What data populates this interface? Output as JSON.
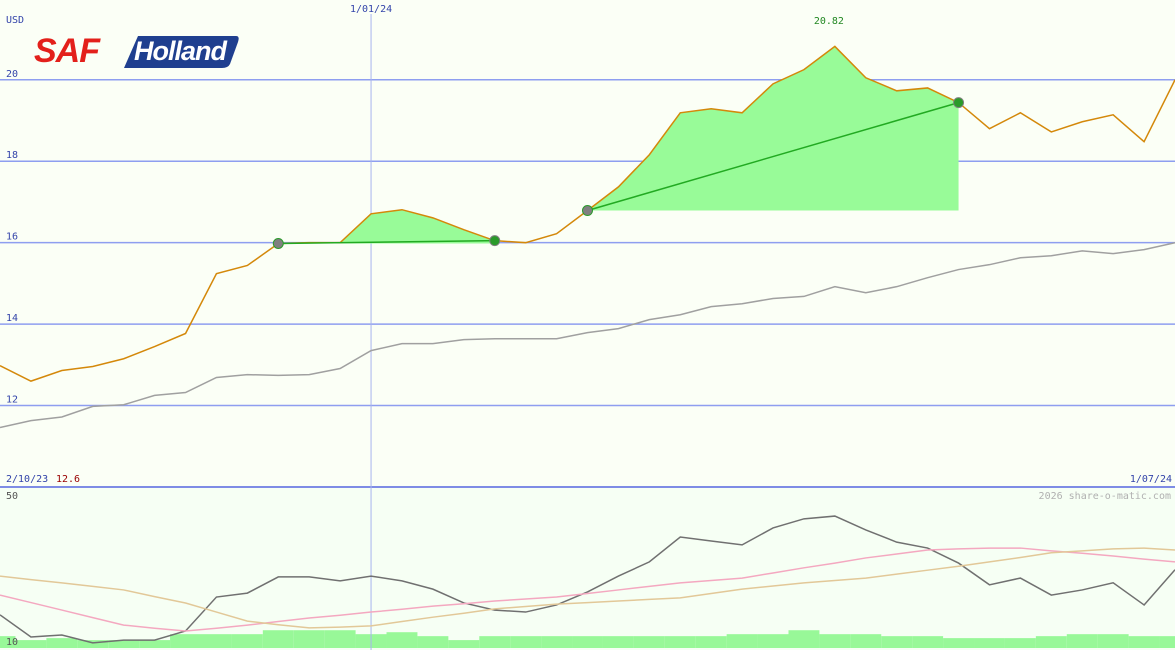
{
  "header": {
    "logo": {
      "saf": "SAF",
      "holland": "Holland"
    },
    "credit": "2026 share-o-matic.com"
  },
  "chart_data": [
    {
      "type": "line",
      "y_label": "USD",
      "categories": [
        "2/10/23",
        null,
        null,
        null,
        null,
        null,
        null,
        null,
        null,
        null,
        null,
        null,
        "1/01/24",
        null,
        null,
        null,
        null,
        null,
        null,
        null,
        null,
        null,
        null,
        null,
        null,
        null,
        null,
        null,
        null,
        null,
        null,
        null,
        null,
        null,
        null,
        null,
        null,
        null,
        "1/07/24"
      ],
      "series": [
        {
          "color": "#d4880a",
          "values": [
            12.98,
            12.6,
            12.86,
            12.96,
            13.15,
            13.45,
            13.77,
            15.24,
            15.44,
            15.98,
            16.0,
            16.0,
            16.71,
            16.81,
            16.61,
            16.32,
            16.05,
            16.0,
            16.22,
            16.79,
            17.37,
            18.16,
            19.19,
            19.29,
            19.19,
            19.9,
            20.25,
            20.82,
            20.05,
            19.73,
            19.8,
            19.44,
            18.8,
            19.19,
            18.72,
            18.97,
            19.14,
            18.48,
            20.0
          ]
        },
        {
          "color": "#a0a0a0",
          "values": [
            11.46,
            11.63,
            11.72,
            11.98,
            12.02,
            12.25,
            12.32,
            12.69,
            12.76,
            12.74,
            12.76,
            12.91,
            13.35,
            13.52,
            13.52,
            13.62,
            13.64,
            13.64,
            13.64,
            13.79,
            13.89,
            14.11,
            14.23,
            14.43,
            14.5,
            14.63,
            14.68,
            14.92,
            14.77,
            14.92,
            15.14,
            15.34,
            15.46,
            15.63,
            15.68,
            15.8,
            15.73,
            15.83,
            16.0
          ]
        }
      ],
      "trend_lines": [
        {
          "from": 9,
          "to": 16,
          "color": "#22aa22",
          "fill": "#98fb98"
        },
        {
          "from": 19,
          "to": 31,
          "color": "#22aa22",
          "fill": "#98fb98"
        }
      ],
      "ylim": [
        10,
        21.96
      ],
      "yticks": [
        12,
        14,
        16,
        18,
        20
      ],
      "grid": true
    },
    {
      "type": "line",
      "series": [
        {
          "color": "#707070",
          "values": [
            18.4,
            12.8,
            13.3,
            11.3,
            12.0,
            12.0,
            14.3,
            22.9,
            23.9,
            28.0,
            28.0,
            27.0,
            28.2,
            27.0,
            24.9,
            21.4,
            19.6,
            19.1,
            20.9,
            24.2,
            28.2,
            31.8,
            38.1,
            37.1,
            36.1,
            40.4,
            42.7,
            43.4,
            39.9,
            36.8,
            35.3,
            31.5,
            26.0,
            27.7,
            23.4,
            24.7,
            26.5,
            20.9,
            29.8
          ]
        },
        {
          "color": "#f4a8c0",
          "values": [
            23.4,
            21.5,
            19.6,
            17.7,
            15.8,
            15.0,
            14.3,
            15.0,
            15.8,
            16.7,
            17.6,
            18.3,
            19.1,
            19.8,
            20.6,
            21.2,
            21.9,
            22.4,
            22.9,
            23.8,
            24.7,
            25.6,
            26.5,
            27.1,
            27.7,
            29.0,
            30.3,
            31.5,
            32.8,
            33.8,
            34.8,
            35.1,
            35.3,
            35.3,
            34.6,
            34.0,
            33.3,
            32.5,
            31.8
          ]
        },
        {
          "color": "#e2c898",
          "values": [
            28.2,
            27.3,
            26.5,
            25.6,
            24.7,
            23.0,
            21.4,
            19.1,
            16.8,
            15.9,
            15.1,
            15.3,
            15.6,
            16.7,
            17.8,
            18.8,
            19.9,
            20.5,
            21.1,
            21.5,
            21.9,
            22.3,
            22.7,
            23.8,
            24.9,
            25.7,
            26.5,
            27.1,
            27.7,
            28.7,
            29.7,
            30.7,
            31.8,
            32.9,
            34.1,
            34.6,
            35.1,
            35.3,
            34.8
          ]
        }
      ],
      "volume": {
        "color": "#98f898",
        "values": [
          13,
          12,
          12.5,
          12,
          12,
          12,
          13.5,
          13.5,
          13.5,
          14.5,
          14.5,
          14.5,
          13.5,
          14,
          13,
          12,
          13,
          13,
          13,
          13,
          13,
          13,
          13,
          13,
          13.5,
          13.5,
          14.5,
          13.5,
          13.5,
          13,
          13,
          12.5,
          12.5,
          12.5,
          13,
          13.5,
          13.5,
          13,
          13
        ]
      },
      "ylim": [
        10,
        50
      ],
      "yticks": [
        10,
        50
      ],
      "grid": false
    }
  ]
}
